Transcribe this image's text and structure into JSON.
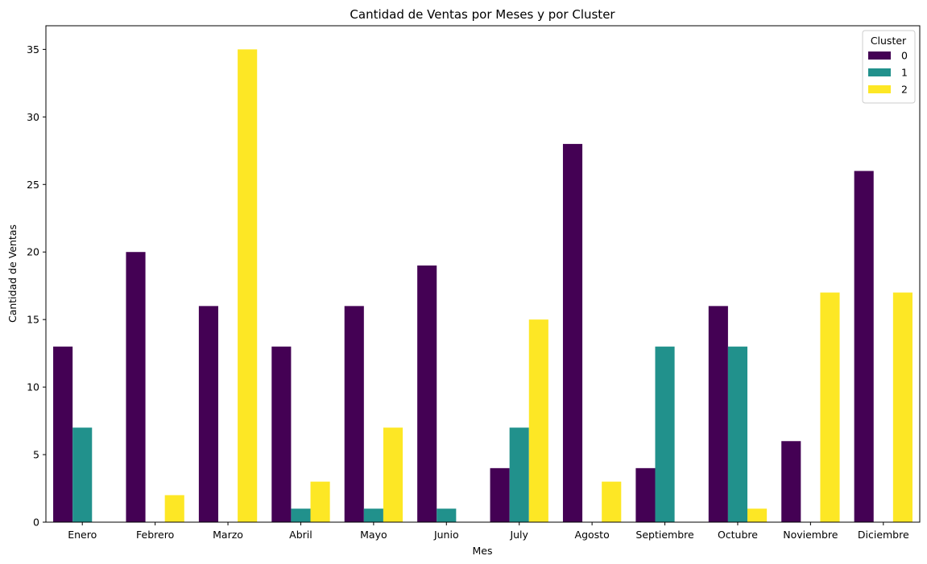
{
  "chart_data": {
    "type": "bar",
    "title": "Cantidad de Ventas por Meses y por Cluster",
    "xlabel": "Mes",
    "ylabel": "Cantidad de Ventas",
    "categories": [
      "Enero",
      "Febrero",
      "Marzo",
      "Abril",
      "Mayo",
      "Junio",
      "July",
      "Agosto",
      "Septiembre",
      "Octubre",
      "Noviembre",
      "Diciembre"
    ],
    "series": [
      {
        "name": "0",
        "color": "#440154",
        "values": [
          13,
          20,
          16,
          13,
          16,
          19,
          4,
          28,
          4,
          16,
          6,
          26
        ]
      },
      {
        "name": "1",
        "color": "#21918c",
        "values": [
          7,
          0,
          0,
          1,
          1,
          1,
          7,
          0,
          13,
          13,
          0,
          0
        ]
      },
      {
        "name": "2",
        "color": "#fde725",
        "values": [
          0,
          2,
          35,
          3,
          7,
          0,
          15,
          3,
          0,
          1,
          17,
          17
        ]
      }
    ],
    "ylim": [
      0,
      36.75
    ],
    "yticks": [
      0,
      5,
      10,
      15,
      20,
      25,
      30,
      35
    ],
    "legend": {
      "title": "Cluster",
      "placement": "top-right"
    },
    "grid": false
  }
}
